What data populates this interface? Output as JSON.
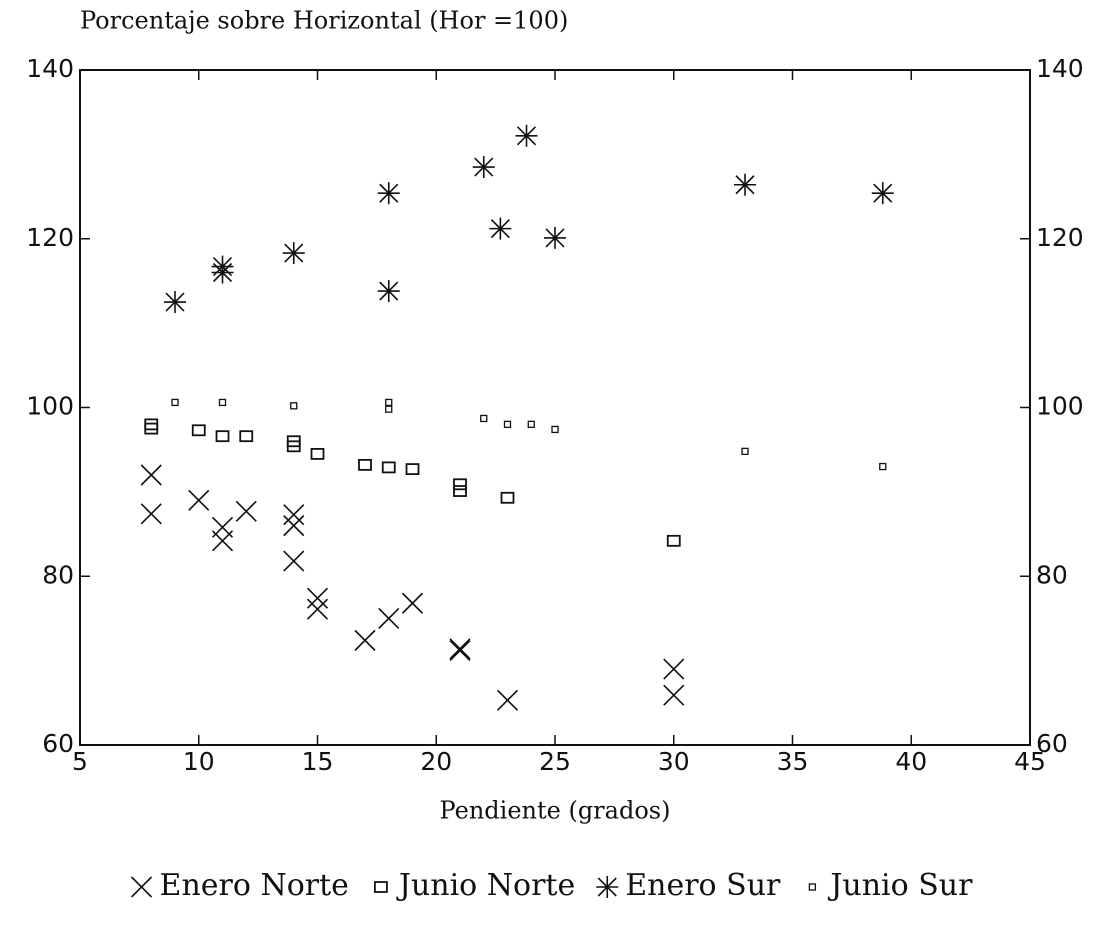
{
  "chart_data": {
    "type": "scatter",
    "title": "Porcentaje sobre Horizontal (Hor =100)",
    "xlabel": "Pendiente (grados)",
    "xlim": [
      5,
      45
    ],
    "xticks": [
      5,
      10,
      15,
      20,
      25,
      30,
      35,
      40,
      45
    ],
    "ylim": [
      60,
      140
    ],
    "yticks": [
      60,
      80,
      100,
      120,
      140
    ],
    "legend": "bottom",
    "series": [
      {
        "name": "Enero Norte",
        "color": "#111111",
        "marker": "x",
        "x": [
          8,
          8,
          10,
          11,
          11,
          12,
          14,
          14,
          14,
          15,
          15,
          17,
          18,
          19,
          21,
          21,
          23,
          30,
          30
        ],
        "values": [
          92,
          87.4,
          89,
          85.8,
          84.2,
          87.7,
          87.3,
          86,
          81.8,
          77.4,
          76.1,
          72.4,
          75,
          76.8,
          71.2,
          71.4,
          65.3,
          69,
          65.9
        ]
      },
      {
        "name": "Junio Norte",
        "color": "#111111",
        "marker": "square",
        "x": [
          8,
          8,
          10,
          11,
          12,
          14,
          14,
          15,
          17,
          18,
          19,
          21,
          21,
          23,
          30
        ],
        "values": [
          98,
          97.5,
          97.3,
          96.6,
          96.6,
          96,
          95.4,
          94.5,
          93.2,
          92.9,
          92.7,
          90.9,
          90.1,
          89.3,
          84.2
        ]
      },
      {
        "name": "Enero Sur",
        "color": "#111111",
        "marker": "asterisk",
        "x": [
          9,
          11,
          11,
          14,
          18,
          18,
          22,
          22.7,
          23.8,
          25,
          33,
          38.8
        ],
        "values": [
          112.5,
          116.7,
          116,
          118.3,
          125.4,
          113.8,
          128.5,
          121.2,
          132.2,
          120.1,
          126.4,
          125.4
        ]
      },
      {
        "name": "Junio Sur",
        "color": "#111111",
        "marker": "small-square",
        "x": [
          9,
          11,
          14,
          18,
          18,
          22,
          23,
          24,
          25,
          33,
          38.8
        ],
        "values": [
          100.6,
          100.6,
          100.2,
          100.6,
          99.8,
          98.7,
          98,
          98,
          97.4,
          94.8,
          93
        ]
      }
    ]
  }
}
